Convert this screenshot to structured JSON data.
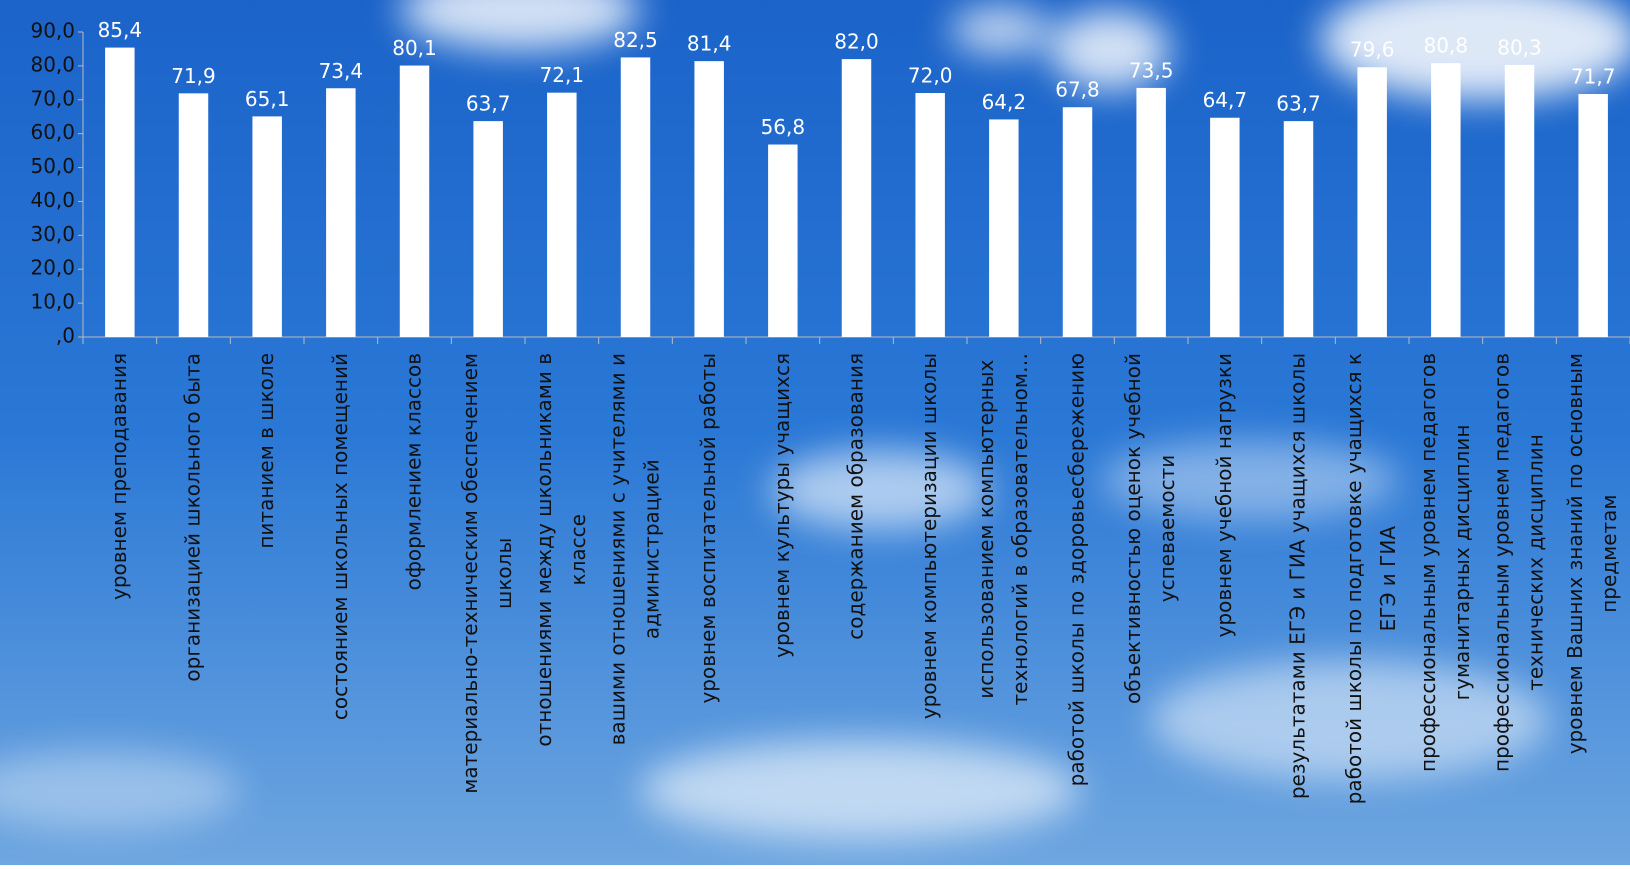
{
  "chart_data": {
    "type": "bar",
    "categories": [
      "уровнем преподавания",
      "организацией школьного быта",
      "питанием в школе",
      "состоянием школьных помещений",
      "оформлением классов",
      "материально-техническим обеспечением школы",
      "отношениями между школьниками в классе",
      "вашими отношениями с учителями и администрацией",
      "уровнем воспитательной работы",
      "уровнем культуры учащихся",
      "содержанием образования",
      "уровнем компьютеризации школы",
      "использованием компьютерных технологий в образовательном…",
      "работой школы по здоровьесбережению",
      "объективностью оценок учебной успеваемости",
      "уровнем учебной нагрузки",
      "результатами ЕГЭ и ГИА учащихся школы",
      "работой школы по подготовке учащихся к ЕГЭ и ГИА",
      "профессиональным уровнем педагогов гуманитарных дисциплин",
      "профессиональным уровнем педагогов технических дисциплин",
      "уровнем Вашних знаний по основным предметам"
    ],
    "values": [
      85.4,
      71.9,
      65.1,
      73.4,
      80.1,
      63.7,
      72.1,
      82.5,
      81.4,
      56.8,
      82.0,
      72.0,
      64.2,
      67.8,
      73.5,
      64.7,
      63.7,
      79.6,
      80.8,
      80.3,
      71.7
    ],
    "value_labels": [
      "85,4",
      "71,9",
      "65,1",
      "73,4",
      "80,1",
      "63,7",
      "72,1",
      "82,5",
      "81,4",
      "56,8",
      "82,0",
      "72,0",
      "64,2",
      "67,8",
      "73,5",
      "64,7",
      "63,7",
      "79,6",
      "80,8",
      "80,3",
      "71,7"
    ],
    "color": "#ffffff",
    "ylim": [
      0,
      90
    ],
    "yticks": [
      {
        "value": 0,
        "label": ",0"
      },
      {
        "value": 10,
        "label": "10,0"
      },
      {
        "value": 20,
        "label": "20,0"
      },
      {
        "value": 30,
        "label": "30,0"
      },
      {
        "value": 40,
        "label": "40,0"
      },
      {
        "value": 50,
        "label": "50,0"
      },
      {
        "value": 60,
        "label": "60,0"
      },
      {
        "value": 70,
        "label": "70,0"
      },
      {
        "value": 80,
        "label": "80,0"
      },
      {
        "value": 90,
        "label": "90,0"
      }
    ]
  }
}
